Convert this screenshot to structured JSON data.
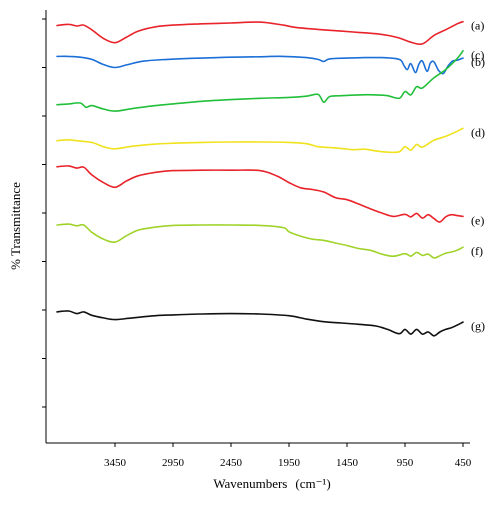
{
  "chart_data": {
    "type": "line",
    "title": "",
    "xlabel": "Wavenumbers",
    "xlabel_unit": "(cm⁻¹)",
    "ylabel": "% Transmittance",
    "xlim": [
      4000,
      400
    ],
    "x_reversed": true,
    "xticks": [
      3450,
      2950,
      2450,
      1950,
      1450,
      950,
      450
    ],
    "y_ticks_labeled": false,
    "grid": false,
    "series": [
      {
        "name": "(a)",
        "color": "#e8232a",
        "x": [
          3950,
          3850,
          3780,
          3720,
          3650,
          3550,
          3450,
          3350,
          3250,
          3100,
          2950,
          2700,
          2450,
          2200,
          2000,
          1900,
          1700,
          1500,
          1350,
          1200,
          1100,
          1000,
          900,
          800,
          700,
          600,
          500,
          450
        ],
        "y": [
          94.5,
          94.8,
          94.4,
          94.6,
          93.5,
          91.5,
          90.5,
          91.8,
          93.2,
          94.2,
          94.6,
          94.9,
          95.1,
          95.3,
          94.6,
          94.1,
          93.6,
          93.2,
          92.9,
          92.6,
          92.2,
          91.6,
          90.6,
          90.2,
          92.2,
          93.5,
          94.9,
          95.4
        ]
      },
      {
        "name": "(b)",
        "color": "#1b6fd6",
        "x": [
          3950,
          3850,
          3750,
          3650,
          3550,
          3450,
          3350,
          3200,
          3000,
          2700,
          2450,
          2200,
          2000,
          1800,
          1700,
          1650,
          1600,
          1450,
          1300,
          1150,
          1000,
          960,
          930,
          900,
          860,
          830,
          800,
          760,
          730,
          700,
          660,
          620,
          580,
          540,
          500,
          450
        ],
        "y": [
          87.3,
          87.3,
          87.1,
          86.6,
          85.4,
          84.7,
          85.3,
          86.2,
          86.6,
          86.9,
          87.1,
          87.2,
          87.3,
          87.0,
          86.6,
          86.1,
          86.7,
          86.9,
          87.0,
          87.0,
          86.6,
          85.2,
          84.2,
          85.6,
          83.5,
          85.5,
          86.2,
          83.8,
          85.8,
          86.0,
          84.0,
          83.3,
          85.0,
          86.2,
          86.4,
          86.9
        ]
      },
      {
        "name": "(c)",
        "color": "#22bf3a",
        "x": [
          3950,
          3850,
          3750,
          3700,
          3650,
          3550,
          3450,
          3300,
          3100,
          2950,
          2700,
          2450,
          2200,
          1950,
          1800,
          1700,
          1650,
          1600,
          1500,
          1350,
          1200,
          1100,
          1000,
          950,
          900,
          850,
          800,
          700,
          600,
          500,
          450
        ],
        "y": [
          76.0,
          76.2,
          76.4,
          75.4,
          75.8,
          75.0,
          74.5,
          75.1,
          75.8,
          76.2,
          76.8,
          77.2,
          77.5,
          77.7,
          78.0,
          78.4,
          76.6,
          77.9,
          78.1,
          78.3,
          78.3,
          78.1,
          77.5,
          79.1,
          78.3,
          80.2,
          79.9,
          82.3,
          84.2,
          86.8,
          88.6
        ]
      },
      {
        "name": "(d)",
        "color": "#f0e21c",
        "x": [
          3950,
          3850,
          3750,
          3650,
          3550,
          3450,
          3300,
          3100,
          2950,
          2700,
          2450,
          2200,
          1950,
          1800,
          1700,
          1600,
          1500,
          1400,
          1300,
          1200,
          1100,
          1000,
          950,
          900,
          850,
          800,
          700,
          600,
          500,
          450
        ],
        "y": [
          67.6,
          67.8,
          67.5,
          67.2,
          66.2,
          65.7,
          66.3,
          66.8,
          67.0,
          67.2,
          67.3,
          67.3,
          67.2,
          66.9,
          66.2,
          66.0,
          65.8,
          65.5,
          65.6,
          65.2,
          64.9,
          65.0,
          66.2,
          65.4,
          66.7,
          66.1,
          67.7,
          68.6,
          69.8,
          70.5
        ]
      },
      {
        "name": "(e)",
        "color": "#e8232a",
        "x": [
          3950,
          3850,
          3780,
          3720,
          3650,
          3550,
          3450,
          3350,
          3250,
          3100,
          2950,
          2700,
          2450,
          2200,
          2050,
          1950,
          1850,
          1750,
          1650,
          1550,
          1450,
          1350,
          1250,
          1150,
          1050,
          950,
          900,
          850,
          800,
          750,
          700,
          650,
          600,
          550,
          500,
          450
        ],
        "y": [
          61.5,
          61.7,
          61.2,
          61.4,
          59.6,
          57.8,
          56.7,
          58.2,
          59.4,
          60.2,
          60.6,
          60.7,
          60.7,
          60.6,
          59.3,
          57.8,
          56.6,
          56.2,
          55.6,
          54.3,
          53.8,
          52.8,
          51.7,
          50.7,
          49.9,
          50.4,
          49.8,
          50.6,
          49.5,
          50.3,
          49.4,
          48.6,
          49.8,
          50.3,
          50.1,
          49.9
        ]
      },
      {
        "name": "(f)",
        "color": "#9fd32a",
        "x": [
          3950,
          3850,
          3780,
          3720,
          3650,
          3550,
          3450,
          3350,
          3250,
          3100,
          2950,
          2700,
          2450,
          2200,
          2000,
          1950,
          1850,
          1750,
          1650,
          1550,
          1450,
          1350,
          1250,
          1150,
          1050,
          950,
          900,
          850,
          800,
          750,
          700,
          650,
          600,
          550,
          500,
          450
        ],
        "y": [
          47.9,
          48.1,
          47.7,
          47.9,
          46.2,
          44.6,
          43.9,
          45.4,
          46.7,
          47.4,
          47.8,
          47.9,
          47.9,
          47.8,
          47.3,
          46.3,
          45.3,
          44.6,
          44.3,
          43.7,
          43.1,
          42.4,
          42.0,
          41.1,
          40.6,
          41.2,
          40.6,
          41.5,
          40.8,
          41.1,
          40.2,
          40.7,
          41.3,
          41.6,
          42.0,
          42.7
        ]
      },
      {
        "name": "(g)",
        "color": "#111111",
        "x": [
          3950,
          3850,
          3780,
          3720,
          3650,
          3550,
          3450,
          3300,
          3100,
          2950,
          2700,
          2450,
          2200,
          1950,
          1800,
          1650,
          1500,
          1350,
          1200,
          1100,
          1000,
          950,
          900,
          850,
          800,
          750,
          700,
          650,
          600,
          550,
          500,
          450
        ],
        "y": [
          27.6,
          27.8,
          27.2,
          27.6,
          26.8,
          26.2,
          25.8,
          26.2,
          26.7,
          26.9,
          27.1,
          27.2,
          27.1,
          26.7,
          25.9,
          25.3,
          25.0,
          24.7,
          24.3,
          23.5,
          22.5,
          23.5,
          22.4,
          23.5,
          22.4,
          22.9,
          22.0,
          22.9,
          23.5,
          23.9,
          24.5,
          25.2
        ]
      }
    ]
  }
}
